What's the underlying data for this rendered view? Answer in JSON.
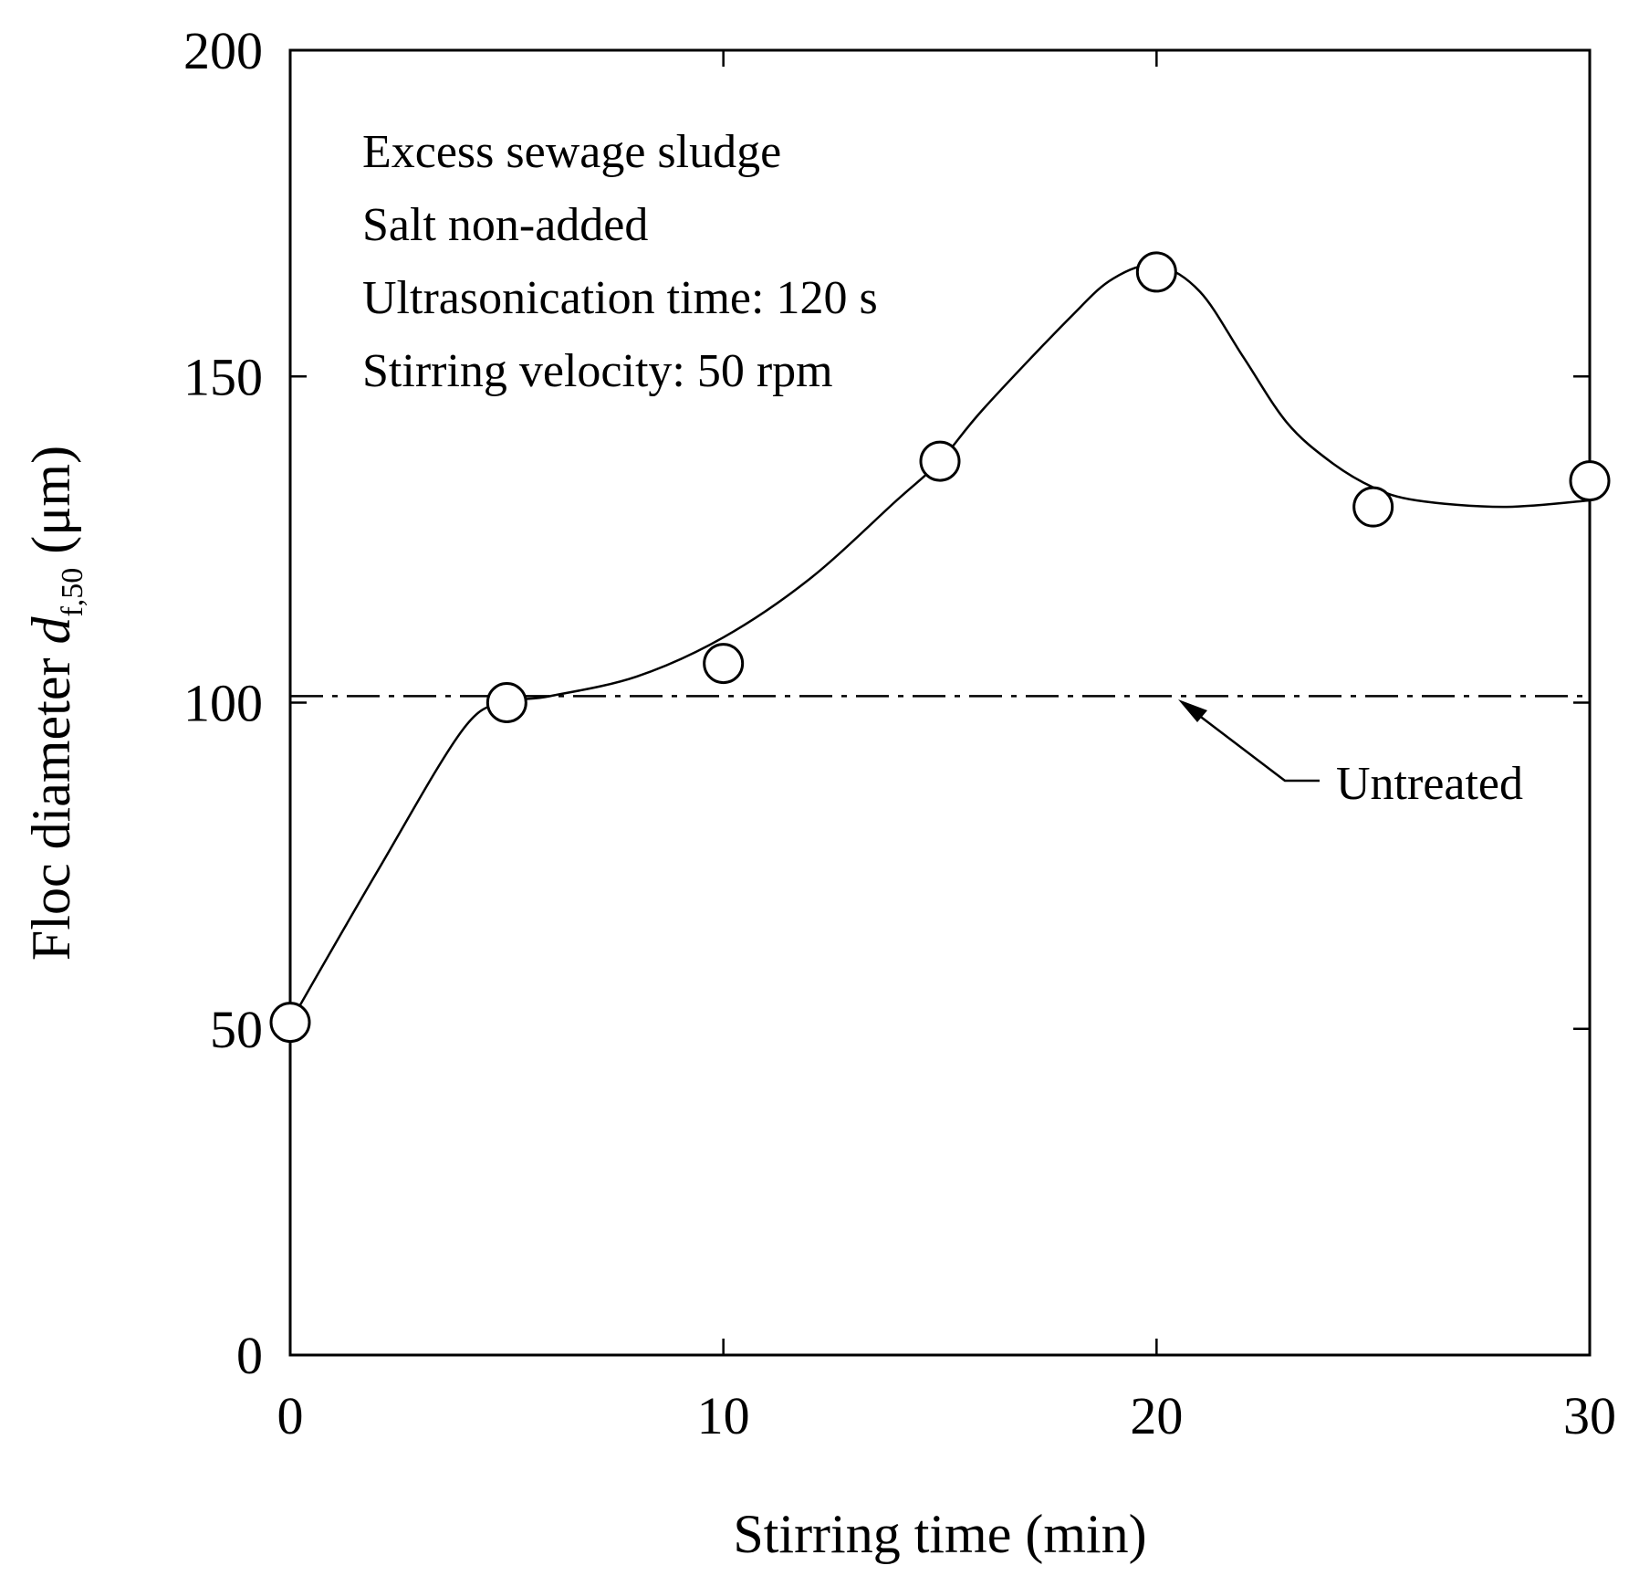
{
  "chart_data": {
    "type": "scatter",
    "title": "",
    "xlabel": "Stirring time  (min)",
    "ylabel": {
      "prefix": "Floc diameter ",
      "symbol": "d",
      "subscript": "f,50",
      "unit": " (μm)"
    },
    "xlim": [
      0,
      30
    ],
    "ylim": [
      0,
      200
    ],
    "x_ticks": [
      0,
      10,
      20,
      30
    ],
    "y_ticks": [
      0,
      50,
      100,
      150,
      200
    ],
    "x_tick_labels": [
      "0",
      "10",
      "20",
      "30"
    ],
    "y_tick_labels": [
      "0",
      "50",
      "100",
      "150",
      "200"
    ],
    "grid": false,
    "series": [
      {
        "name": "Floc diameter",
        "marker": "open-circle",
        "x": [
          0,
          5,
          10,
          15,
          20,
          25,
          30
        ],
        "y": [
          51,
          100,
          106,
          137,
          166,
          130,
          134
        ]
      }
    ],
    "fit_curve": {
      "x": [
        0,
        2,
        4,
        5,
        6,
        8,
        10,
        12,
        14,
        15,
        16,
        18,
        19,
        20,
        21,
        22,
        23,
        24,
        25,
        26,
        28,
        30
      ],
      "y": [
        51,
        74,
        96,
        100,
        101,
        104,
        110,
        119,
        131,
        137,
        145,
        159,
        165,
        167,
        163,
        153,
        143,
        137,
        133,
        131,
        130,
        131
      ]
    },
    "reference_line": {
      "label": "Untreated",
      "y": 101,
      "style": "dash-dot"
    },
    "annotations": [
      "Excess sewage sludge",
      "Salt non-added",
      "Ultrasonication time: 120 s",
      "Stirring velocity: 50 rpm"
    ]
  },
  "colors": {
    "ink": "#000000",
    "marker_fill": "#ffffff",
    "background": "#ffffff"
  }
}
